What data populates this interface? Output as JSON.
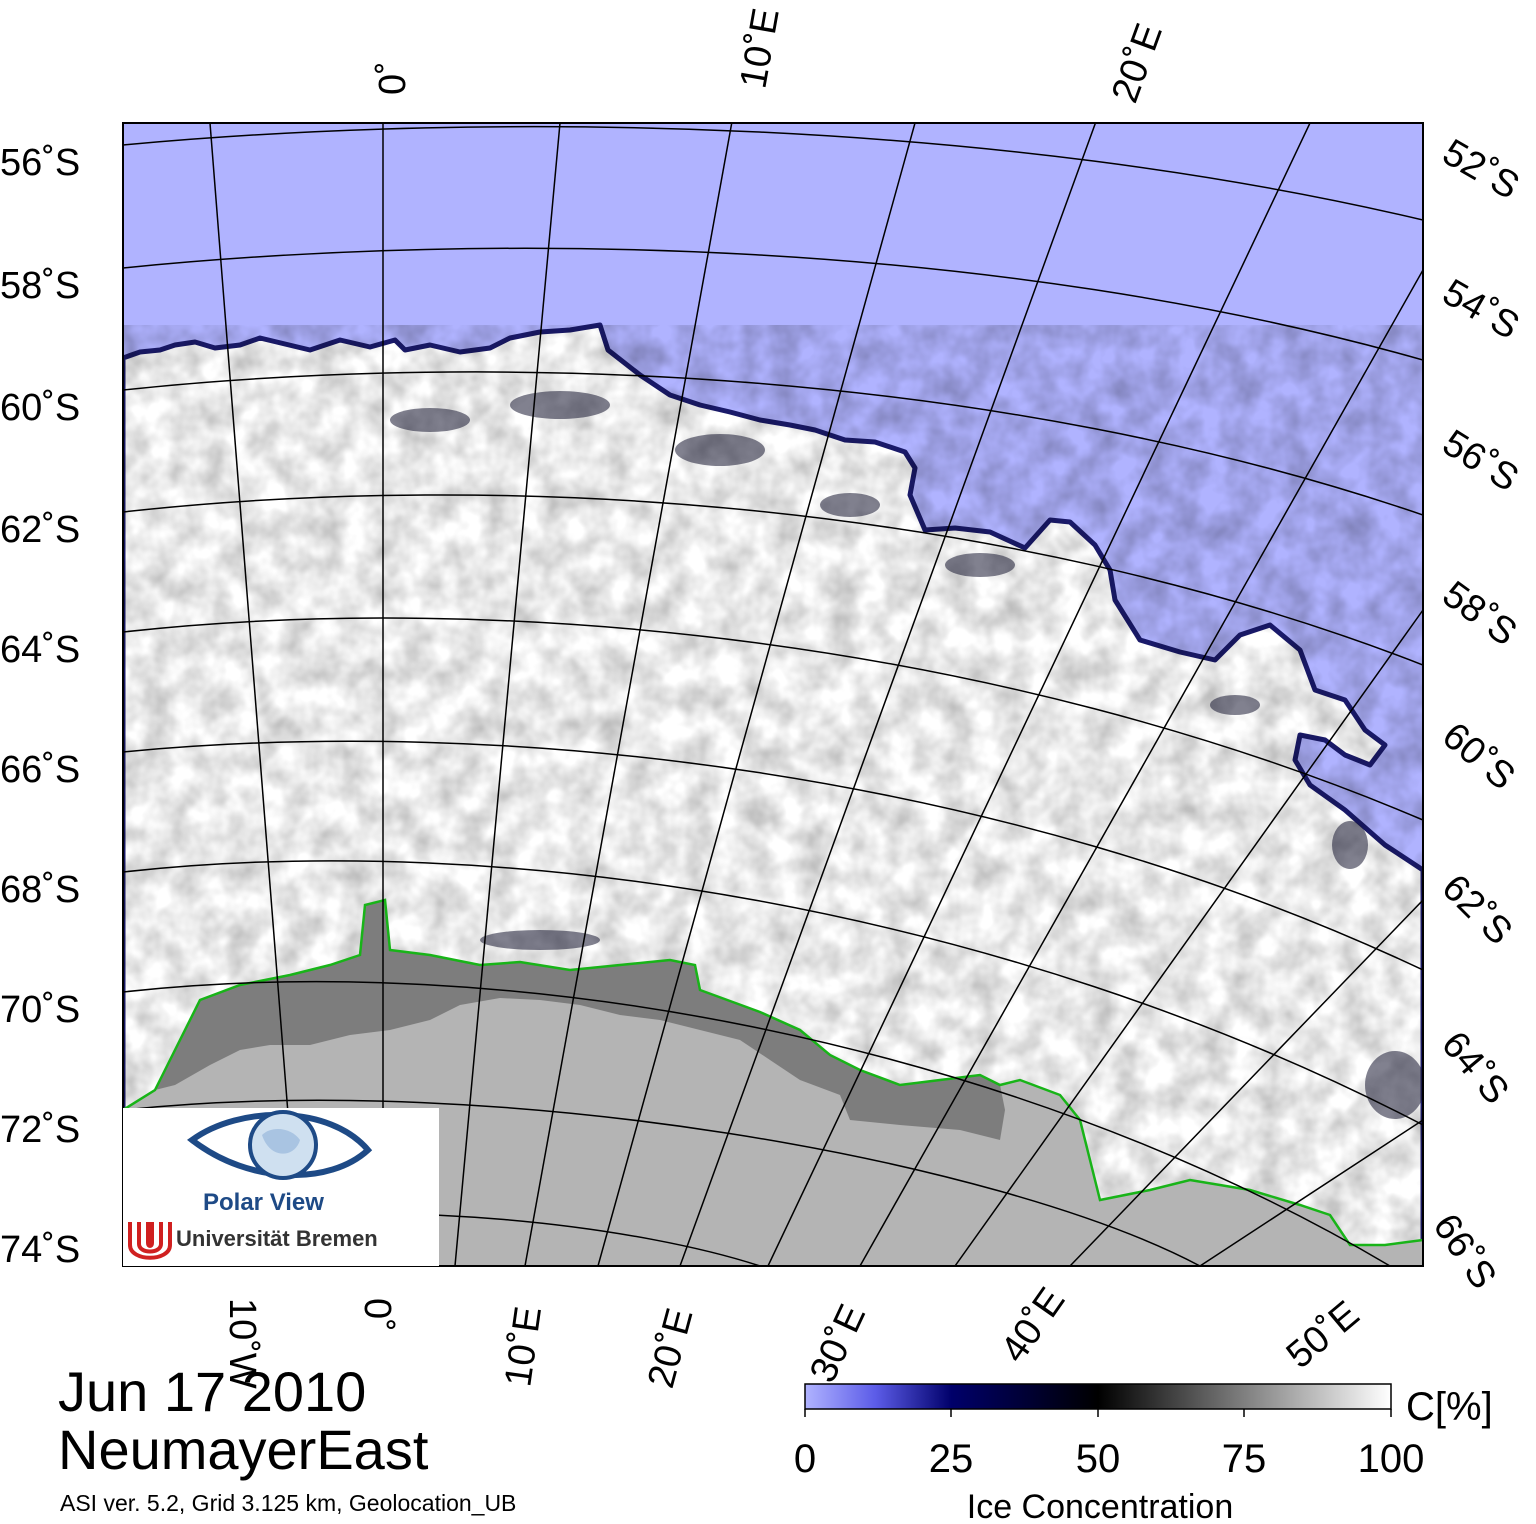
{
  "title": {
    "date": "Jun 17 2010",
    "region": "NeumayerEast",
    "meta": "ASI ver. 5.2,  Grid 3.125 km, Geolocation_UB"
  },
  "logo": {
    "title": "Polar View",
    "university": "Universität Bremen",
    "icon": "eye-globe-icon"
  },
  "axes": {
    "lat_left": [
      "56˚S",
      "58˚S",
      "60˚S",
      "62˚S",
      "64˚S",
      "66˚S",
      "68˚S",
      "70˚S",
      "72˚S",
      "74˚S"
    ],
    "lat_right": [
      "52˚S",
      "54˚S",
      "56˚S",
      "58˚S",
      "60˚S",
      "62˚S",
      "64˚S",
      "66˚S"
    ],
    "lon_top": [
      "0˚",
      "10˚E",
      "20˚E"
    ],
    "lon_bottom": [
      "10˚W",
      "0˚",
      "10˚E",
      "20˚E",
      "30˚E",
      "40˚E",
      "50˚E"
    ]
  },
  "colorbar": {
    "ticks": [
      "0",
      "25",
      "50",
      "75",
      "100"
    ],
    "unit": "C[%]",
    "label": "Ice Concentration",
    "colors": [
      "#b0b3ff",
      "#5c5ce8",
      "#00006a",
      "#000000",
      "#ffffff"
    ]
  },
  "colors": {
    "open_water": "#b0b3ff",
    "land": "#b4b4b4",
    "ice_shelf": "#7d7d7d",
    "coastline": "#18b418",
    "ice_max": "#ffffff"
  }
}
